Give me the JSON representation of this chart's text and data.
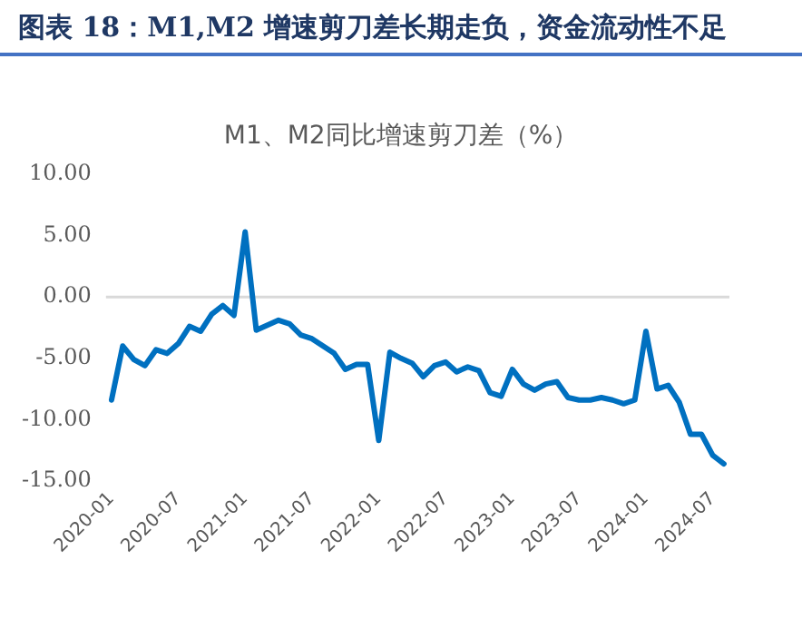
{
  "chart_data": {
    "type": "line",
    "title": "图表 18：M1,M2 增速剪刀差长期走负，资金流动性不足",
    "subtitle": "M1、M2同比增速剪刀差（%）",
    "categories": [
      "2020-01",
      null,
      null,
      null,
      null,
      null,
      "2020-07",
      null,
      null,
      null,
      null,
      null,
      "2021-01",
      null,
      null,
      null,
      null,
      null,
      "2021-07",
      null,
      null,
      null,
      null,
      null,
      "2022-01",
      null,
      null,
      null,
      null,
      null,
      "2022-07",
      null,
      null,
      null,
      null,
      null,
      "2023-01",
      null,
      null,
      null,
      null,
      null,
      "2023-07",
      null,
      null,
      null,
      null,
      null,
      "2024-01",
      null,
      null,
      null,
      null,
      null,
      "2024-07",
      null
    ],
    "series": [
      {
        "color": "#0070c0",
        "values": [
          -8.4,
          -4.0,
          -5.1,
          -5.6,
          -4.3,
          -4.6,
          -3.8,
          -2.4,
          -2.8,
          -1.4,
          -0.7,
          -1.5,
          5.3,
          -2.7,
          -2.3,
          -1.9,
          -2.2,
          -3.1,
          -3.4,
          -4.0,
          -4.6,
          -5.9,
          -5.5,
          -5.5,
          -11.7,
          -4.5,
          -5.0,
          -5.4,
          -6.5,
          -5.6,
          -5.3,
          -6.1,
          -5.7,
          -6.0,
          -7.8,
          -8.1,
          -5.9,
          -7.1,
          -7.6,
          -7.1,
          -6.9,
          -8.2,
          -8.4,
          -8.4,
          -8.2,
          -8.4,
          -8.7,
          -8.4,
          -2.8,
          -7.5,
          -7.2,
          -8.6,
          -11.2,
          -11.2,
          -12.9,
          -13.6
        ]
      }
    ],
    "ylim": [
      -15,
      10
    ],
    "yticks": [
      {
        "value": -15,
        "label": "-15.00"
      },
      {
        "value": -10,
        "label": "-10.00"
      },
      {
        "value": -5,
        "label": "-5.00"
      },
      {
        "value": 0,
        "label": "0.00"
      },
      {
        "value": 5,
        "label": "5.00"
      },
      {
        "value": 10,
        "label": "10.00"
      }
    ],
    "ref_lines": [
      {
        "axis": "y",
        "value": 0,
        "color": "#d9d9d9"
      }
    ],
    "grid": false,
    "legend": false,
    "marker": "none",
    "line_style": "solid"
  }
}
